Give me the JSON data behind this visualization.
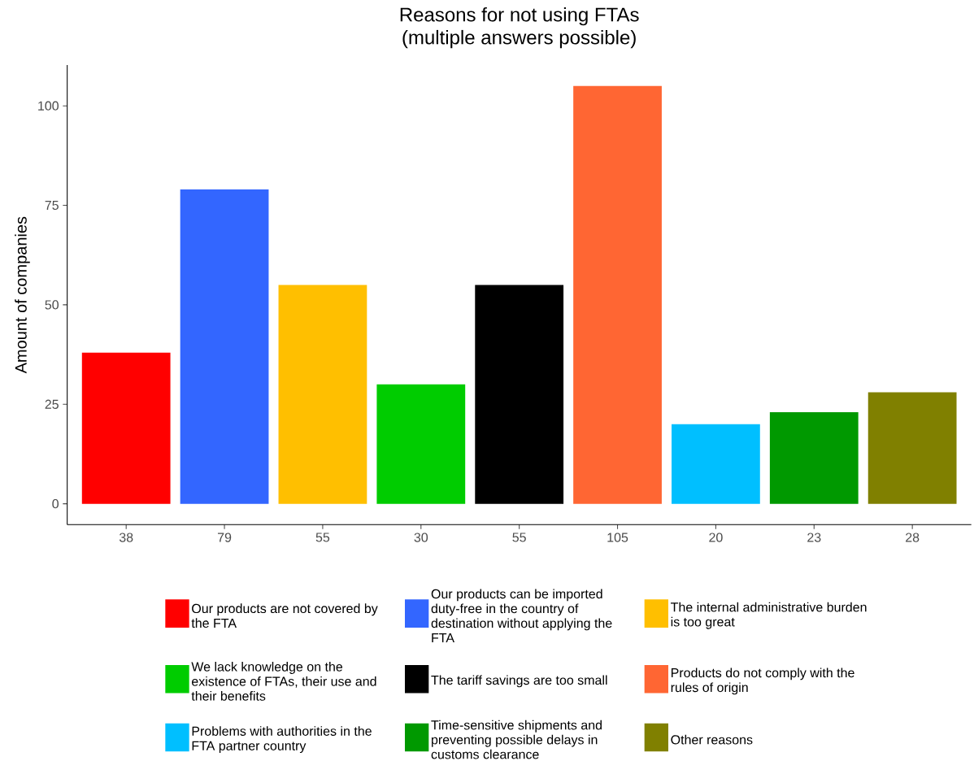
{
  "chart_data": {
    "type": "bar",
    "title": "Reasons for not using FTAs\n(multiple answers possible)",
    "ylabel": "Amount of companies",
    "categories": [
      "38",
      "79",
      "55",
      "30",
      "55",
      "105",
      "20",
      "23",
      "28"
    ],
    "series": [
      {
        "name": "Our products are not covered by the FTA",
        "color": "#ff0000",
        "values": [
          38,
          null,
          null,
          null,
          null,
          null,
          null,
          null,
          null
        ]
      },
      {
        "name": "Our products can be imported duty-free in the country of destination without applying the FTA",
        "color": "#3366ff",
        "values": [
          null,
          79,
          null,
          null,
          null,
          null,
          null,
          null,
          null
        ]
      },
      {
        "name": "The internal administrative burden is too great",
        "color": "#ffbf00",
        "values": [
          null,
          null,
          55,
          null,
          null,
          null,
          null,
          null,
          null
        ]
      },
      {
        "name": "We lack knowledge on the existence of FTAs, their use and their benefits",
        "color": "#00cc00",
        "values": [
          null,
          null,
          null,
          30,
          null,
          null,
          null,
          null,
          null
        ]
      },
      {
        "name": "The tariff savings are too small",
        "color": "#000000",
        "values": [
          null,
          null,
          null,
          null,
          55,
          null,
          null,
          null,
          null
        ]
      },
      {
        "name": "Products do not comply with the rules of origin",
        "color": "#ff6633",
        "values": [
          null,
          null,
          null,
          null,
          null,
          105,
          null,
          null,
          null
        ]
      },
      {
        "name": "Problems with authorities in the FTA partner country",
        "color": "#00bfff",
        "values": [
          null,
          null,
          null,
          null,
          null,
          null,
          20,
          null,
          null
        ]
      },
      {
        "name": "Time-sensitive shipments and preventing possible delays in customs clearance",
        "color": "#009900",
        "values": [
          null,
          null,
          null,
          null,
          null,
          null,
          null,
          23,
          null
        ]
      },
      {
        "name": "Other reasons",
        "color": "#808000",
        "values": [
          null,
          null,
          null,
          null,
          null,
          null,
          null,
          null,
          28
        ]
      }
    ],
    "ylim": [
      -5.25,
      110.25
    ],
    "yticks": [
      0,
      25,
      50,
      75,
      100
    ],
    "grid": false,
    "legend": "bottom"
  }
}
